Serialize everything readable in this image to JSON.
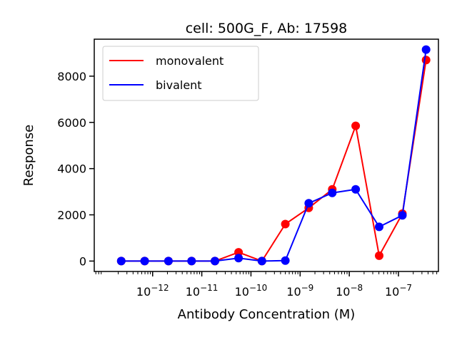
{
  "chart_data": {
    "type": "line",
    "title": "cell: 500G_F, Ab: 17598",
    "xlabel": "Antibody Concentration (M)",
    "ylabel": "Response",
    "xscale": "log",
    "xlim": [
      6.5e-14,
      6.5e-07
    ],
    "ylim": [
      -450,
      9600
    ],
    "x_ticks": [
      {
        "value": 1e-12,
        "base": "10",
        "exp": "−12"
      },
      {
        "value": 1e-11,
        "base": "10",
        "exp": "−11"
      },
      {
        "value": 1e-10,
        "base": "10",
        "exp": "−10"
      },
      {
        "value": 1e-09,
        "base": "10",
        "exp": "−9"
      },
      {
        "value": 1e-08,
        "base": "10",
        "exp": "−8"
      },
      {
        "value": 1e-07,
        "base": "10",
        "exp": "−7"
      }
    ],
    "y_ticks": [
      0,
      2000,
      4000,
      6000,
      8000
    ],
    "legend_position": "top-left",
    "grid": false,
    "x": [
      2.3e-13,
      6.9e-13,
      2.1e-12,
      6.2e-12,
      1.85e-11,
      5.6e-11,
      1.67e-10,
      5e-10,
      1.5e-09,
      4.5e-09,
      1.35e-08,
      4.05e-08,
      1.2e-07,
      3.65e-07
    ],
    "series": [
      {
        "name": "monovalent",
        "color": "#ff0000",
        "values": [
          0,
          0,
          0,
          0,
          0,
          380,
          0,
          1600,
          2300,
          3100,
          5850,
          230,
          2050,
          8700
        ]
      },
      {
        "name": "bivalent",
        "color": "#0000ff",
        "values": [
          0,
          0,
          0,
          0,
          0,
          130,
          0,
          20,
          2500,
          2950,
          3100,
          1480,
          1980,
          9150
        ]
      }
    ]
  }
}
